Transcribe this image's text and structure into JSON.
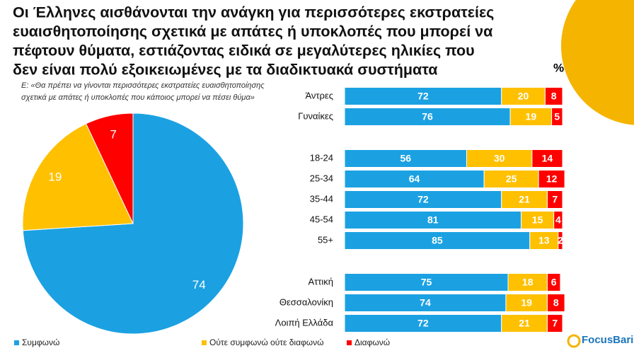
{
  "title": [
    "Οι Έλληνες αισθάνονται την ανάγκη για περισσότερες εκστρατείες",
    "ευαισθητοποίησης σχετικά με απάτες ή υποκλοπές που μπορεί να",
    "πέφτουν θύματα, εστιάζοντας ειδικά σε μεγαλύτερες ηλικίες που",
    "δεν είναι πολύ εξοικειωμένες με τα διαδικτυακά συστήματα"
  ],
  "unit": "%",
  "question": [
    "Ε: «Θα πρέπει να γίνονται περισσότερες εκστρατείες ευαισθητοποίησης",
    "σχετικά με απάτες ή υποκλοπές που κάποιος μπορεί να πέσει θύμα»"
  ],
  "logo": "FocusBari",
  "chart_data": [
    {
      "type": "pie",
      "categories": [
        "Συμφωνώ",
        "Ούτε συμφωνώ ούτε διαφωνώ",
        "Διαφωνώ"
      ],
      "values": [
        74,
        19,
        7
      ],
      "colors": [
        "#1ba1e2",
        "#ffc000",
        "#ff0000"
      ]
    },
    {
      "type": "bar",
      "orientation": "horizontal",
      "stacked": true,
      "categories": [
        "Άντρες",
        "Γυναίκες",
        "18-24",
        "25-34",
        "35-44",
        "45-54",
        "55+",
        "Αττική",
        "Θεσσαλονίκη",
        "Λοιπή Ελλάδα"
      ],
      "xlim": [
        0,
        100
      ],
      "series": [
        {
          "color": "#1ba1e2",
          "values": [
            72,
            76,
            56,
            64,
            72,
            81,
            85,
            75,
            74,
            72
          ]
        },
        {
          "color": "#ffc000",
          "values": [
            20,
            19,
            30,
            25,
            21,
            15,
            13,
            18,
            19,
            21
          ]
        },
        {
          "color": "#ff0000",
          "values": [
            8,
            5,
            14,
            12,
            7,
            4,
            2,
            6,
            8,
            7
          ]
        }
      ]
    }
  ]
}
